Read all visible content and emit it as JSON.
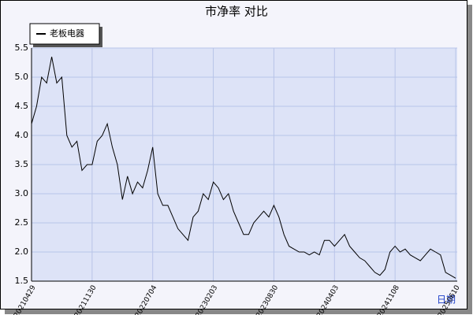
{
  "chart_data": {
    "type": "line",
    "title": "市净率 对比",
    "x_label": "日期",
    "categories": [
      "20210429",
      null,
      null,
      null,
      null,
      null,
      null,
      null,
      null,
      null,
      null,
      null,
      "20211130",
      null,
      null,
      null,
      null,
      null,
      null,
      null,
      null,
      null,
      null,
      null,
      "20220704",
      null,
      null,
      null,
      null,
      null,
      null,
      null,
      null,
      null,
      null,
      null,
      "20230203",
      null,
      null,
      null,
      null,
      null,
      null,
      null,
      null,
      null,
      null,
      null,
      "20230830",
      null,
      null,
      null,
      null,
      null,
      null,
      null,
      null,
      null,
      null,
      null,
      "20240403",
      null,
      null,
      null,
      null,
      null,
      null,
      null,
      null,
      null,
      null,
      null,
      "20241108",
      null,
      null,
      null,
      null,
      null,
      null,
      null,
      null,
      null,
      null,
      null,
      "20250610"
    ],
    "series": [
      {
        "name": "老板电器",
        "color": "#000000",
        "values": [
          4.2,
          4.5,
          5.0,
          4.9,
          5.35,
          4.9,
          5.0,
          4.0,
          3.8,
          3.9,
          3.4,
          3.5,
          3.5,
          3.9,
          4.0,
          4.2,
          3.8,
          3.5,
          2.9,
          3.3,
          3.0,
          3.2,
          3.1,
          3.4,
          3.8,
          3.0,
          2.8,
          2.8,
          2.6,
          2.4,
          2.3,
          2.2,
          2.6,
          2.7,
          3.0,
          2.9,
          3.2,
          3.1,
          2.9,
          3.0,
          2.7,
          2.5,
          2.3,
          2.3,
          2.5,
          2.6,
          2.7,
          2.6,
          2.8,
          2.6,
          2.3,
          2.1,
          2.05,
          2.0,
          2.0,
          1.95,
          2.0,
          1.95,
          2.2,
          2.2,
          2.1,
          2.2,
          2.3,
          2.1,
          2.0,
          1.9,
          1.85,
          1.75,
          1.65,
          1.6,
          1.7,
          2.0,
          2.1,
          2.0,
          2.05,
          1.95,
          1.9,
          1.85,
          1.95,
          2.05,
          2.0,
          1.95,
          1.65,
          1.6,
          1.55
        ]
      }
    ],
    "ylim": [
      1.5,
      5.5
    ],
    "yticks": [
      1.5,
      {
        "value": 2,
        "label": "2.0"
      },
      2.5,
      {
        "value": 3,
        "label": "3.0"
      },
      3.5,
      {
        "value": 4,
        "label": "4.0"
      },
      4.5,
      {
        "value": 5,
        "label": "5.0"
      },
      5.5
    ],
    "grid": true
  }
}
